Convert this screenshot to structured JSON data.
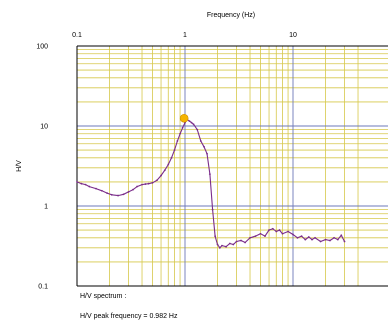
{
  "chart_data": {
    "type": "line",
    "xlabel": "Frequency (Hz)",
    "ylabel": "H/V",
    "x_scale": "log",
    "y_scale": "log",
    "xlim": [
      0.1,
      50
    ],
    "ylim": [
      0.1,
      100
    ],
    "x_tick_labels": [
      "0.1",
      "1",
      "10"
    ],
    "y_tick_labels": [
      "100",
      "10",
      "1",
      "0.1"
    ],
    "grid": true,
    "series": [
      {
        "color": "#7a2c8a",
        "x": [
          0.1,
          0.11,
          0.12,
          0.13,
          0.15,
          0.17,
          0.19,
          0.21,
          0.24,
          0.27,
          0.3,
          0.33,
          0.36,
          0.4,
          0.43,
          0.46,
          0.5,
          0.55,
          0.6,
          0.65,
          0.7,
          0.75,
          0.8,
          0.85,
          0.9,
          0.95,
          1.0,
          1.05,
          1.1,
          1.15,
          1.2,
          1.3,
          1.4,
          1.5,
          1.6,
          1.7,
          1.8,
          1.9,
          2.0,
          2.1,
          2.2,
          2.4,
          2.6,
          2.8,
          3.0,
          3.3,
          3.6,
          4.0,
          4.5,
          5.0,
          5.5,
          6.0,
          6.5,
          7.0,
          7.5,
          8.0,
          9.0,
          10,
          11,
          12,
          13,
          14,
          15,
          16,
          18,
          20,
          22,
          24,
          26,
          28,
          30
        ],
        "y": [
          2.0,
          1.9,
          1.85,
          1.75,
          1.65,
          1.55,
          1.45,
          1.38,
          1.35,
          1.4,
          1.5,
          1.6,
          1.75,
          1.85,
          1.88,
          1.9,
          1.95,
          2.1,
          2.4,
          2.8,
          3.3,
          4.0,
          5.0,
          6.5,
          8.0,
          9.5,
          11.0,
          12.0,
          11.5,
          11.0,
          10.5,
          9.0,
          6.5,
          5.5,
          4.5,
          2.5,
          0.9,
          0.42,
          0.33,
          0.3,
          0.32,
          0.31,
          0.34,
          0.33,
          0.36,
          0.37,
          0.35,
          0.4,
          0.42,
          0.45,
          0.42,
          0.5,
          0.52,
          0.48,
          0.5,
          0.45,
          0.48,
          0.44,
          0.4,
          0.42,
          0.38,
          0.41,
          0.38,
          0.4,
          0.36,
          0.38,
          0.37,
          0.4,
          0.38,
          0.43,
          0.36
        ]
      }
    ],
    "peak": {
      "x": 0.982,
      "y": 12.5,
      "color": "#f5b400"
    }
  },
  "notes": {
    "spectrum_label": "H/V spectrum :",
    "peak_text": "H/V peak frequency = 0.982 Hz"
  },
  "colors": {
    "minor_grid": "#d6c84a",
    "major_grid": "#6d78b8",
    "axis": "#000000"
  }
}
